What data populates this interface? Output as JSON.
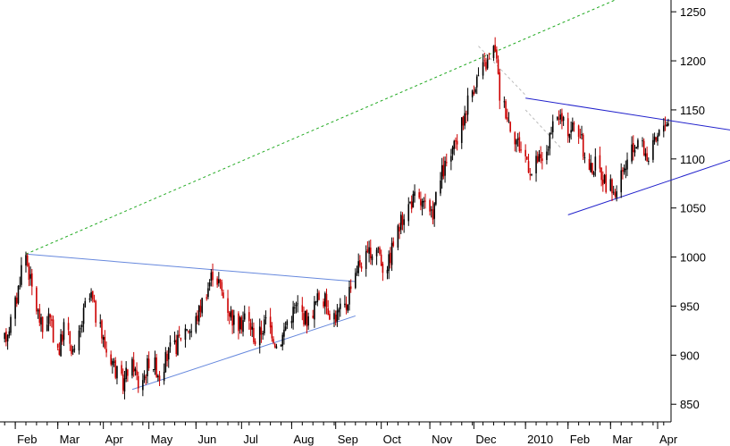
{
  "chart_data": {
    "type": "candlestick",
    "title": "",
    "xlabel": "",
    "ylabel": "",
    "ylim": [
      832,
      1262
    ],
    "y_ticks": [
      850,
      900,
      950,
      1000,
      1050,
      1100,
      1150,
      1200,
      1250
    ],
    "y_axis_side": "right",
    "grid": false,
    "x_ticks": [
      {
        "label": "Feb",
        "date": "2009-02-02"
      },
      {
        "label": "Mar",
        "date": "2009-03-02"
      },
      {
        "label": "Apr",
        "date": "2009-04-01"
      },
      {
        "label": "May",
        "date": "2009-05-01"
      },
      {
        "label": "Jun",
        "date": "2009-06-01"
      },
      {
        "label": "Jul",
        "date": "2009-07-01"
      },
      {
        "label": "Aug",
        "date": "2009-08-03"
      },
      {
        "label": "Sep",
        "date": "2009-09-01"
      },
      {
        "label": "Oct",
        "date": "2009-10-01"
      },
      {
        "label": "Nov",
        "date": "2009-11-02"
      },
      {
        "label": "Dec",
        "date": "2009-12-01"
      },
      {
        "label": "2010",
        "date": "2010-01-04"
      },
      {
        "label": "Feb",
        "date": "2010-02-01"
      },
      {
        "label": "Mar",
        "date": "2010-03-01"
      },
      {
        "label": "Apr",
        "date": "2010-04-01"
      }
    ],
    "price_path": [
      [
        "2009-01-26",
        915
      ],
      [
        "2009-01-30",
        935
      ],
      [
        "2009-02-03",
        958
      ],
      [
        "2009-02-06",
        990
      ],
      [
        "2009-02-09",
        1003
      ],
      [
        "2009-02-12",
        975
      ],
      [
        "2009-02-16",
        948
      ],
      [
        "2009-02-20",
        925
      ],
      [
        "2009-02-24",
        940
      ],
      [
        "2009-02-27",
        920
      ],
      [
        "2009-03-03",
        905
      ],
      [
        "2009-03-06",
        930
      ],
      [
        "2009-03-10",
        915
      ],
      [
        "2009-03-13",
        900
      ],
      [
        "2009-03-17",
        925
      ],
      [
        "2009-03-20",
        950
      ],
      [
        "2009-03-24",
        960
      ],
      [
        "2009-03-27",
        940
      ],
      [
        "2009-03-31",
        920
      ],
      [
        "2009-04-03",
        905
      ],
      [
        "2009-04-07",
        895
      ],
      [
        "2009-04-10",
        880
      ],
      [
        "2009-04-14",
        870
      ],
      [
        "2009-04-17",
        885
      ],
      [
        "2009-04-21",
        890
      ],
      [
        "2009-04-24",
        870
      ],
      [
        "2009-04-28",
        880
      ],
      [
        "2009-05-01",
        895
      ],
      [
        "2009-05-05",
        890
      ],
      [
        "2009-05-08",
        880
      ],
      [
        "2009-05-12",
        895
      ],
      [
        "2009-05-15",
        905
      ],
      [
        "2009-05-19",
        910
      ],
      [
        "2009-05-22",
        920
      ],
      [
        "2009-05-26",
        930
      ],
      [
        "2009-05-29",
        925
      ],
      [
        "2009-06-02",
        940
      ],
      [
        "2009-06-05",
        955
      ],
      [
        "2009-06-09",
        970
      ],
      [
        "2009-06-12",
        985
      ],
      [
        "2009-06-16",
        975
      ],
      [
        "2009-06-19",
        960
      ],
      [
        "2009-06-23",
        945
      ],
      [
        "2009-06-26",
        935
      ],
      [
        "2009-06-30",
        930
      ],
      [
        "2009-07-03",
        940
      ],
      [
        "2009-07-07",
        930
      ],
      [
        "2009-07-10",
        915
      ],
      [
        "2009-07-14",
        925
      ],
      [
        "2009-07-17",
        935
      ],
      [
        "2009-07-21",
        925
      ],
      [
        "2009-07-24",
        910
      ],
      [
        "2009-07-28",
        920
      ],
      [
        "2009-07-31",
        935
      ],
      [
        "2009-08-04",
        945
      ],
      [
        "2009-08-07",
        950
      ],
      [
        "2009-08-11",
        940
      ],
      [
        "2009-08-14",
        935
      ],
      [
        "2009-08-18",
        950
      ],
      [
        "2009-08-21",
        960
      ],
      [
        "2009-08-25",
        955
      ],
      [
        "2009-08-28",
        945
      ],
      [
        "2009-09-01",
        940
      ],
      [
        "2009-09-04",
        945
      ],
      [
        "2009-09-08",
        950
      ],
      [
        "2009-09-11",
        975
      ],
      [
        "2009-09-15",
        990
      ],
      [
        "2009-09-18",
        995
      ],
      [
        "2009-09-22",
        1000
      ],
      [
        "2009-09-25",
        1005
      ],
      [
        "2009-09-29",
        1010
      ],
      [
        "2009-10-02",
        990
      ],
      [
        "2009-10-06",
        995
      ],
      [
        "2009-10-09",
        1015
      ],
      [
        "2009-10-13",
        1030
      ],
      [
        "2009-10-16",
        1045
      ],
      [
        "2009-10-20",
        1055
      ],
      [
        "2009-10-23",
        1060
      ],
      [
        "2009-10-27",
        1055
      ],
      [
        "2009-10-30",
        1050
      ],
      [
        "2009-11-03",
        1040
      ],
      [
        "2009-11-06",
        1060
      ],
      [
        "2009-11-10",
        1085
      ],
      [
        "2009-11-13",
        1095
      ],
      [
        "2009-11-17",
        1105
      ],
      [
        "2009-11-20",
        1120
      ],
      [
        "2009-11-24",
        1140
      ],
      [
        "2009-11-27",
        1160
      ],
      [
        "2009-12-01",
        1175
      ],
      [
        "2009-12-04",
        1185
      ],
      [
        "2009-12-08",
        1195
      ],
      [
        "2009-12-11",
        1200
      ],
      [
        "2009-12-15",
        1215
      ],
      [
        "2009-12-18",
        1165
      ],
      [
        "2009-12-22",
        1150
      ],
      [
        "2009-12-25",
        1135
      ],
      [
        "2009-12-29",
        1120
      ],
      [
        "2010-01-01",
        1110
      ],
      [
        "2010-01-05",
        1100
      ],
      [
        "2010-01-08",
        1085
      ],
      [
        "2010-01-12",
        1100
      ],
      [
        "2010-01-15",
        1095
      ],
      [
        "2010-01-19",
        1115
      ],
      [
        "2010-01-22",
        1130
      ],
      [
        "2010-01-26",
        1145
      ],
      [
        "2010-01-29",
        1135
      ],
      [
        "2010-02-02",
        1130
      ],
      [
        "2010-02-05",
        1135
      ],
      [
        "2010-02-09",
        1125
      ],
      [
        "2010-02-12",
        1100
      ],
      [
        "2010-02-16",
        1090
      ],
      [
        "2010-02-19",
        1095
      ],
      [
        "2010-02-23",
        1085
      ],
      [
        "2010-02-26",
        1075
      ],
      [
        "2010-03-02",
        1070
      ],
      [
        "2010-03-05",
        1065
      ],
      [
        "2010-03-09",
        1085
      ],
      [
        "2010-03-12",
        1095
      ],
      [
        "2010-03-16",
        1110
      ],
      [
        "2010-03-19",
        1120
      ],
      [
        "2010-03-23",
        1110
      ],
      [
        "2010-03-26",
        1100
      ],
      [
        "2010-03-30",
        1115
      ],
      [
        "2010-04-02",
        1125
      ],
      [
        "2010-04-06",
        1140
      ],
      [
        "2010-04-09",
        1135
      ],
      [
        "2010-04-13",
        1125
      ],
      [
        "2010-04-16",
        1110
      ],
      [
        "2010-04-20",
        1120
      ],
      [
        "2010-04-23",
        1130
      ],
      [
        "2010-04-27",
        1120
      ],
      [
        "2010-04-30",
        1110
      ],
      [
        "2010-05-04",
        1100
      ],
      [
        "2010-05-07",
        1090
      ],
      [
        "2010-05-11",
        1095
      ],
      [
        "2010-05-14",
        1105
      ],
      [
        "2010-05-18",
        1110
      ],
      [
        "2010-05-21",
        1108
      ]
    ],
    "trend_lines": [
      {
        "from": [
          "2009-02-09",
          1003
        ],
        "to": [
          "2009-09-14",
          975
        ],
        "color": "#6688dd",
        "style": "solid"
      },
      {
        "from": [
          "2009-04-20",
          865
        ],
        "to": [
          "2009-09-14",
          940
        ],
        "color": "#6688dd",
        "style": "solid"
      },
      {
        "from": [
          "2010-01-04",
          1162
        ],
        "to": [
          "2010-05-25",
          1128
        ],
        "color": "#2222cc",
        "style": "solid"
      },
      {
        "from": [
          "2010-02-01",
          1043
        ],
        "to": [
          "2010-05-25",
          1102
        ],
        "color": "#2222cc",
        "style": "solid"
      },
      {
        "from": [
          "2009-02-09",
          1003
        ],
        "to": [
          "2010-03-04",
          1262
        ],
        "color": "#22aa22",
        "style": "dashed"
      },
      {
        "from": [
          "2009-12-04",
          1215
        ],
        "to": [
          "2010-01-04",
          1165
        ],
        "color": "#bbbbbb",
        "style": "dashed"
      },
      {
        "from": [
          "2010-01-04",
          1150
        ],
        "to": [
          "2010-01-28",
          1110
        ],
        "color": "#bbbbbb",
        "style": "dashed"
      }
    ],
    "colors": {
      "up": "#000000",
      "down": "#cc0000"
    }
  }
}
